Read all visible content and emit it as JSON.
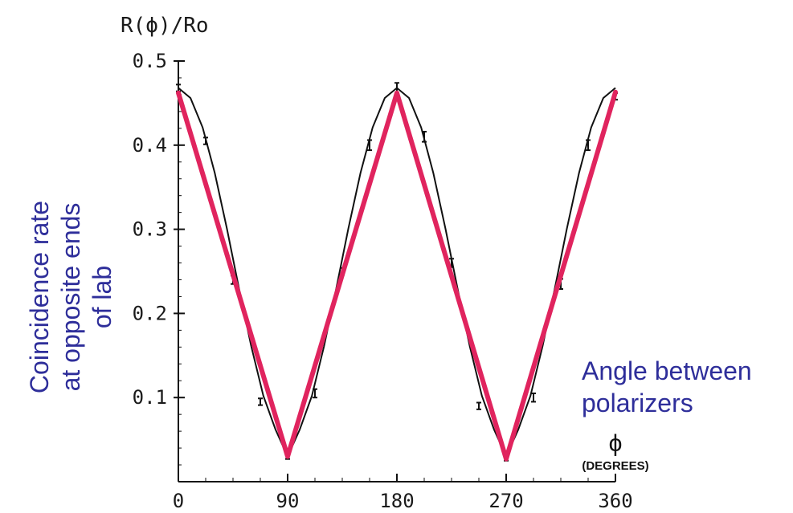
{
  "chart_data": {
    "type": "line",
    "y_axis_title": "R(ϕ)/Ro",
    "x_axis_symbol": "ϕ",
    "x_axis_unit": "(DEGREES)",
    "xlim": [
      0,
      360
    ],
    "ylim": [
      0,
      0.5
    ],
    "x_ticks": [
      "0",
      "90",
      "180",
      "270",
      "360"
    ],
    "y_ticks": [
      "0.1",
      "0.2",
      "0.3",
      "0.4",
      "0.5"
    ],
    "grid": false,
    "annotations": {
      "y_side": [
        "Coincidence rate",
        "at opposite ends",
        "of lab"
      ],
      "x_side": [
        "Angle between",
        "polarizers"
      ]
    },
    "series": [
      {
        "style": "thin-black-line",
        "color": "#111111",
        "x": [
          0,
          10,
          20,
          30,
          40,
          50,
          60,
          70,
          80,
          90,
          100,
          110,
          120,
          130,
          140,
          150,
          160,
          170,
          180,
          190,
          200,
          210,
          220,
          230,
          240,
          250,
          260,
          270,
          280,
          290,
          300,
          310,
          320,
          330,
          340,
          350,
          360
        ],
        "values": [
          0.468,
          0.456,
          0.421,
          0.367,
          0.301,
          0.229,
          0.161,
          0.102,
          0.062,
          0.03,
          0.062,
          0.102,
          0.161,
          0.229,
          0.301,
          0.367,
          0.421,
          0.456,
          0.468,
          0.456,
          0.421,
          0.367,
          0.301,
          0.229,
          0.161,
          0.102,
          0.062,
          0.03,
          0.062,
          0.102,
          0.161,
          0.229,
          0.301,
          0.367,
          0.421,
          0.456,
          0.468
        ]
      },
      {
        "style": "thick-red-line",
        "color": "#e0245e",
        "x": [
          0,
          90,
          180,
          270,
          360
        ],
        "values": [
          0.462,
          0.03,
          0.462,
          0.027,
          0.463
        ]
      },
      {
        "style": "error-bar-points",
        "color": "#111111",
        "x": [
          0,
          22.5,
          45,
          67.5,
          90,
          112.5,
          135,
          157.5,
          180,
          202.5,
          225,
          247.5,
          270,
          292.5,
          315,
          337.5,
          360
        ],
        "values": [
          0.468,
          0.405,
          0.24,
          0.095,
          0.03,
          0.105,
          0.25,
          0.4,
          0.468,
          0.41,
          0.26,
          0.09,
          0.028,
          0.1,
          0.235,
          0.4,
          0.458
        ],
        "error": [
          0.004,
          0.004,
          0.005,
          0.004,
          0.003,
          0.005,
          0.004,
          0.006,
          0.006,
          0.006,
          0.005,
          0.004,
          0.003,
          0.005,
          0.006,
          0.006,
          0.004
        ]
      }
    ]
  }
}
